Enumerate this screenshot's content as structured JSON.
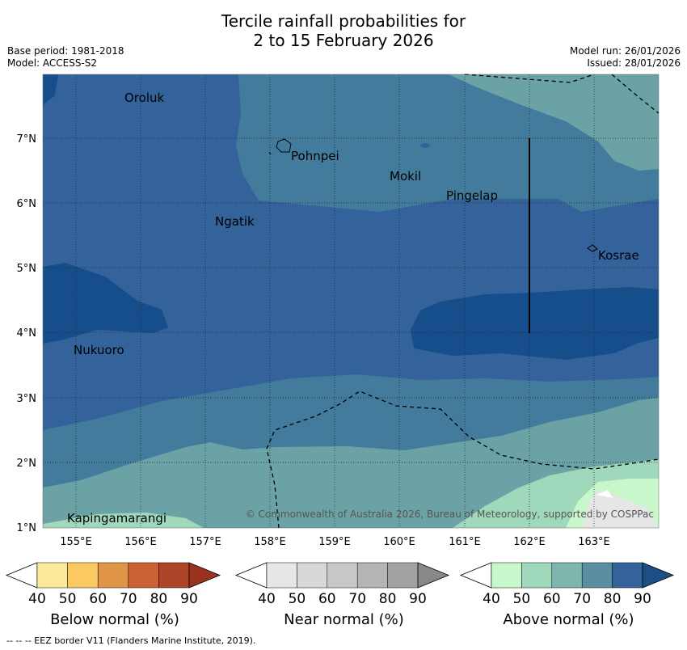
{
  "header": {
    "title_line1": "Tercile rainfall probabilities for",
    "title_line2": "2 to 15 February 2026",
    "base_period": "Base period: 1981-2018",
    "model": "Model: ACCESS-S2",
    "model_run": "Model run: 26/01/2026",
    "issued": "Issued: 28/01/2026"
  },
  "map": {
    "places": [
      {
        "name": "Oroluk"
      },
      {
        "name": "Pohnpei"
      },
      {
        "name": "Mokil"
      },
      {
        "name": "Pingelap"
      },
      {
        "name": "Ngatik"
      },
      {
        "name": "Kosrae"
      },
      {
        "name": "Nukuoro"
      },
      {
        "name": "Kapingamarangi"
      }
    ],
    "lat_labels": [
      "7°N",
      "6°N",
      "5°N",
      "4°N",
      "3°N",
      "2°N",
      "1°N"
    ],
    "lon_labels": [
      "155°E",
      "156°E",
      "157°E",
      "158°E",
      "159°E",
      "160°E",
      "161°E",
      "162°E",
      "163°E"
    ],
    "credit": "© Commonwealth of Australia 2026, Bureau of Meteorology, supported by COSPPac"
  },
  "colorbars": [
    {
      "title": "Below normal (%)",
      "ticks": [
        "40",
        "50",
        "60",
        "70",
        "80",
        "90"
      ],
      "colors": [
        "#ffffff",
        "#fde99c",
        "#fcc862",
        "#e09446",
        "#cc6233",
        "#ae4428",
        "#9a3220"
      ]
    },
    {
      "title": "Near normal (%)",
      "ticks": [
        "40",
        "50",
        "60",
        "70",
        "80",
        "90"
      ],
      "colors": [
        "#ffffff",
        "#e6e6e6",
        "#d8d8d8",
        "#c8c8c8",
        "#b5b5b5",
        "#a2a2a2",
        "#888888"
      ]
    },
    {
      "title": "Above normal (%)",
      "ticks": [
        "40",
        "50",
        "60",
        "70",
        "80",
        "90"
      ],
      "colors": [
        "#ffffff",
        "#c8f7cc",
        "#a0d8bc",
        "#80b5ae",
        "#5a8fa3",
        "#33639a",
        "#1c4f86"
      ]
    }
  ],
  "footer": {
    "legend": "--  --  -- EEZ border V11 (Flanders Marine Institute, 2019)."
  }
}
